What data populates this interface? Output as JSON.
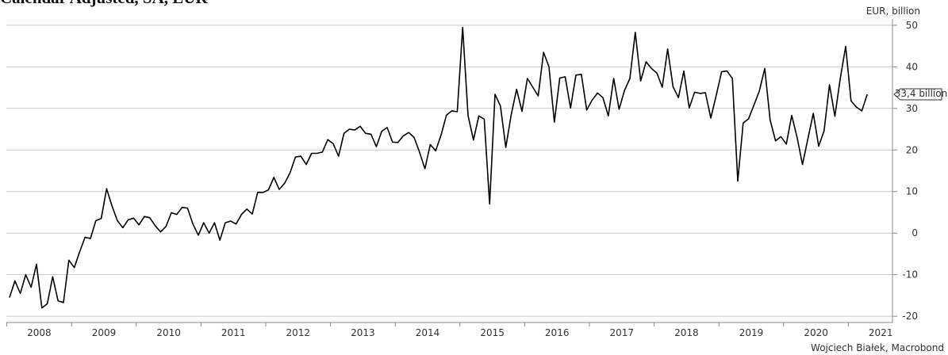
{
  "chart_data": {
    "type": "line",
    "title": "Calendar Adjusted, SA, EUR",
    "y_label": "EUR, billion",
    "source": "Wojciech Białek, Macrobond",
    "years": [
      "2008",
      "2009",
      "2010",
      "2011",
      "2012",
      "2013",
      "2014",
      "2015",
      "2016",
      "2017",
      "2018",
      "2019",
      "2020",
      "2021"
    ],
    "color": "#000000",
    "grid": true,
    "y_axis_side": "right",
    "ylim": [
      -21.5,
      51.5
    ],
    "yticks": [
      -20,
      -10,
      0,
      10,
      20,
      30,
      40,
      50
    ],
    "values": [
      -15.5,
      -11.5,
      -14.5,
      -10,
      -13,
      -7.5,
      -18,
      -17,
      -10.5,
      -16.3,
      -16.7,
      -6.5,
      -8.3,
      -4.5,
      -1,
      -1.3,
      3,
      3.5,
      10.7,
      6.5,
      3,
      1.3,
      3.2,
      3.6,
      2,
      4,
      3.7,
      1.8,
      0.3,
      1.6,
      4.9,
      4.5,
      6.2,
      6,
      2.2,
      -0.5,
      2.5,
      0,
      2.5,
      -1.7,
      2.5,
      2.9,
      2.2,
      4.5,
      5.8,
      4.6,
      9.8,
      9.8,
      10.4,
      13.4,
      10.5,
      12,
      14.5,
      18.3,
      18.5,
      16.5,
      19.2,
      19.2,
      19.5,
      22.5,
      21.5,
      18.5,
      24,
      25,
      24.8,
      25.7,
      24,
      23.8,
      20.8,
      24.5,
      25.4,
      21.9,
      21.8,
      23.4,
      24.2,
      23,
      19.5,
      15.5,
      21.3,
      19.8,
      23.6,
      28.4,
      29.4,
      29.2,
      49.5,
      28.3,
      22.4,
      28.2,
      27.4,
      7,
      33.4,
      30.6,
      20.6,
      28.5,
      34.6,
      29.3,
      37.2,
      35.1,
      33,
      43.5,
      40,
      26.7,
      37.3,
      37.6,
      30.1,
      38,
      38.2,
      29.6,
      32,
      33.7,
      32.6,
      28.2,
      37.2,
      29.8,
      34.3,
      37.2,
      48.3,
      36.6,
      41.2,
      39.6,
      38.5,
      35.1,
      44.3,
      35.2,
      32.6,
      39,
      30.1,
      33.9,
      33.6,
      33.8,
      27.7,
      33.1,
      38.8,
      39,
      37.2,
      12.5,
      26.5,
      27.5,
      30.8,
      34.2,
      39.6,
      27.2,
      22.2,
      23.2,
      21.4,
      28.3,
      23,
      16.5,
      22.7,
      28.8,
      20.9,
      24.6,
      35.7,
      28.1,
      37.2,
      44.9,
      31.8,
      30.3,
      29.4,
      33.4
    ],
    "last_value_label": "33,4 billion"
  }
}
